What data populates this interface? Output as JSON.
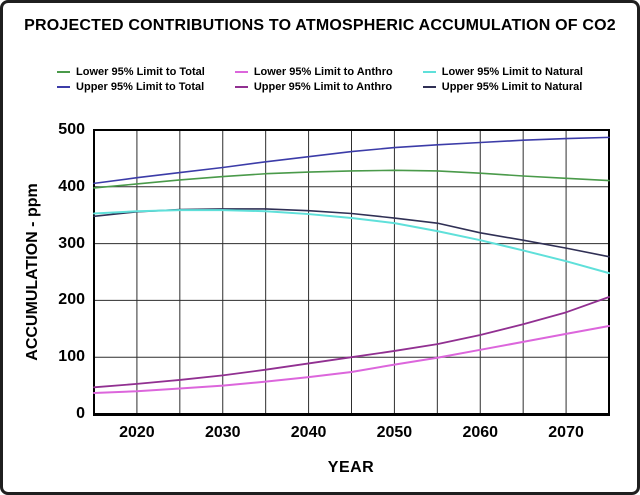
{
  "chart_data": {
    "type": "line",
    "title": "PROJECTED CONTRIBUTIONS TO ATMOSPHERIC ACCUMULATION OF CO2",
    "xlabel": "YEAR",
    "ylabel": "ACCUMULATION - ppm",
    "xlim": [
      2015,
      2075
    ],
    "ylim": [
      0,
      500
    ],
    "x_ticks": [
      2020,
      2030,
      2040,
      2050,
      2060,
      2070
    ],
    "y_ticks": [
      0,
      100,
      200,
      300,
      400,
      500
    ],
    "x_grid_step": 5,
    "y_grid_step": 100,
    "grid": true,
    "legend_position": "top",
    "grid_color": "#2e2e2e",
    "frame_color": "#000000",
    "x": [
      2015,
      2020,
      2025,
      2030,
      2035,
      2040,
      2045,
      2050,
      2055,
      2060,
      2065,
      2070,
      2075
    ],
    "series": [
      {
        "name": "Lower 95% Limit to Total",
        "color": "#4A9A4A",
        "line_width": 1.6,
        "values": [
          398,
          405,
          412,
          418,
          423,
          426,
          428,
          429,
          428,
          424,
          419,
          415,
          411
        ]
      },
      {
        "name": "Lower 95% Limit to Anthro",
        "color": "#DC66DC",
        "line_width": 2,
        "values": [
          37,
          40,
          45,
          50,
          57,
          65,
          74,
          87,
          99,
          113,
          127,
          141,
          155
        ]
      },
      {
        "name": "Lower 95% Limit to Natural",
        "color": "#5FE0DA",
        "line_width": 2,
        "values": [
          353,
          357,
          359,
          359,
          357,
          352,
          345,
          336,
          322,
          306,
          288,
          269,
          248
        ]
      },
      {
        "name": "Upper 95% Limit to Total",
        "color": "#3C3CA8",
        "line_width": 1.6,
        "values": [
          406,
          416,
          425,
          434,
          444,
          453,
          462,
          469,
          474,
          478,
          482,
          485,
          487
        ]
      },
      {
        "name": "Upper 95% Limit to Anthro",
        "color": "#913091",
        "line_width": 1.8,
        "values": [
          47,
          53,
          60,
          68,
          78,
          89,
          100,
          111,
          123,
          139,
          158,
          179,
          206
        ]
      },
      {
        "name": "Upper 95% Limit to Natural",
        "color": "#303055",
        "line_width": 1.6,
        "values": [
          348,
          356,
          360,
          361,
          361,
          358,
          353,
          345,
          336,
          319,
          306,
          292,
          277
        ]
      }
    ]
  }
}
